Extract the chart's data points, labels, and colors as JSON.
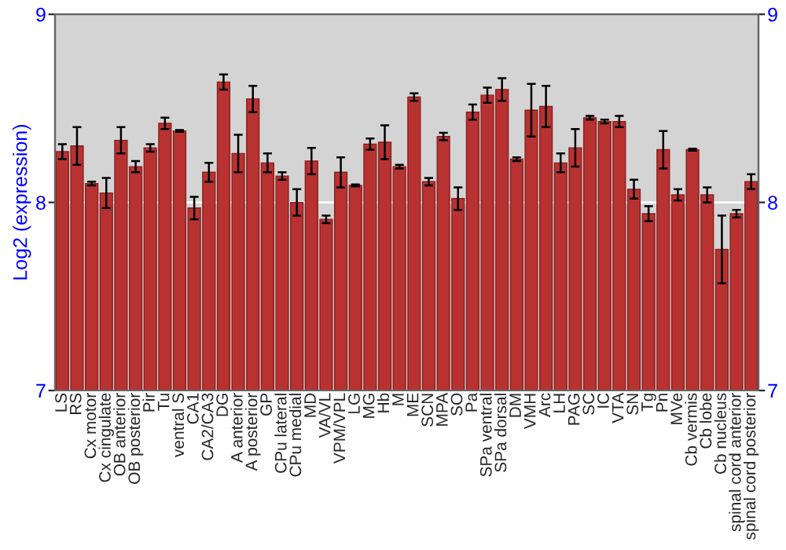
{
  "chart_data": {
    "type": "bar",
    "ylabel": "Log2 (expression)",
    "categories": [
      "LS",
      "RS",
      "Cx motor",
      "Cx cingulate",
      "OB anterior",
      "OB posterior",
      "Pir",
      "Tu",
      "ventral S",
      "CA1",
      "CA2/CA3",
      "DG",
      "A anterior",
      "A posterior",
      "GP",
      "CPu lateral",
      "CPu medial",
      "MD",
      "VA/VL",
      "VPM/VPL",
      "LG",
      "MG",
      "Hb",
      "M",
      "ME",
      "SCN",
      "MPA",
      "SO",
      "Pa",
      "SPa ventral",
      "SPa dorsal",
      "DM",
      "VMH",
      "Arc",
      "LH",
      "PAG",
      "SC",
      "IC",
      "VTA",
      "SN",
      "Tg",
      "Pn",
      "MVe",
      "Cb vermis",
      "Cb lobe",
      "Cb nucleus",
      "spinal cord anterior",
      "spinal cord posterior"
    ],
    "values": [
      8.27,
      8.3,
      8.1,
      8.05,
      8.33,
      8.19,
      8.29,
      8.42,
      8.38,
      7.97,
      8.16,
      8.64,
      8.26,
      8.55,
      8.21,
      8.14,
      8.0,
      8.22,
      7.91,
      8.16,
      8.09,
      8.31,
      8.32,
      8.19,
      8.56,
      8.11,
      8.35,
      8.02,
      8.48,
      8.57,
      8.6,
      8.23,
      8.49,
      8.51,
      8.21,
      8.29,
      8.45,
      8.43,
      8.43,
      8.07,
      7.94,
      8.28,
      8.04,
      8.28,
      8.04,
      7.75,
      7.94,
      8.11
    ],
    "errors": [
      0.04,
      0.1,
      0.01,
      0.08,
      0.07,
      0.03,
      0.02,
      0.03,
      0.005,
      0.06,
      0.05,
      0.04,
      0.1,
      0.07,
      0.05,
      0.02,
      0.07,
      0.07,
      0.02,
      0.08,
      0.005,
      0.03,
      0.09,
      0.01,
      0.02,
      0.02,
      0.02,
      0.06,
      0.04,
      0.04,
      0.06,
      0.01,
      0.14,
      0.11,
      0.05,
      0.1,
      0.01,
      0.01,
      0.03,
      0.05,
      0.04,
      0.1,
      0.03,
      0.005,
      0.04,
      0.18,
      0.02,
      0.04
    ],
    "color": "#b83232",
    "ylim": [
      7,
      9
    ],
    "yticks": [
      7,
      8,
      9
    ],
    "y2lim": [
      7,
      9
    ],
    "y2ticks": [
      7,
      8,
      9
    ],
    "grid": "y"
  }
}
